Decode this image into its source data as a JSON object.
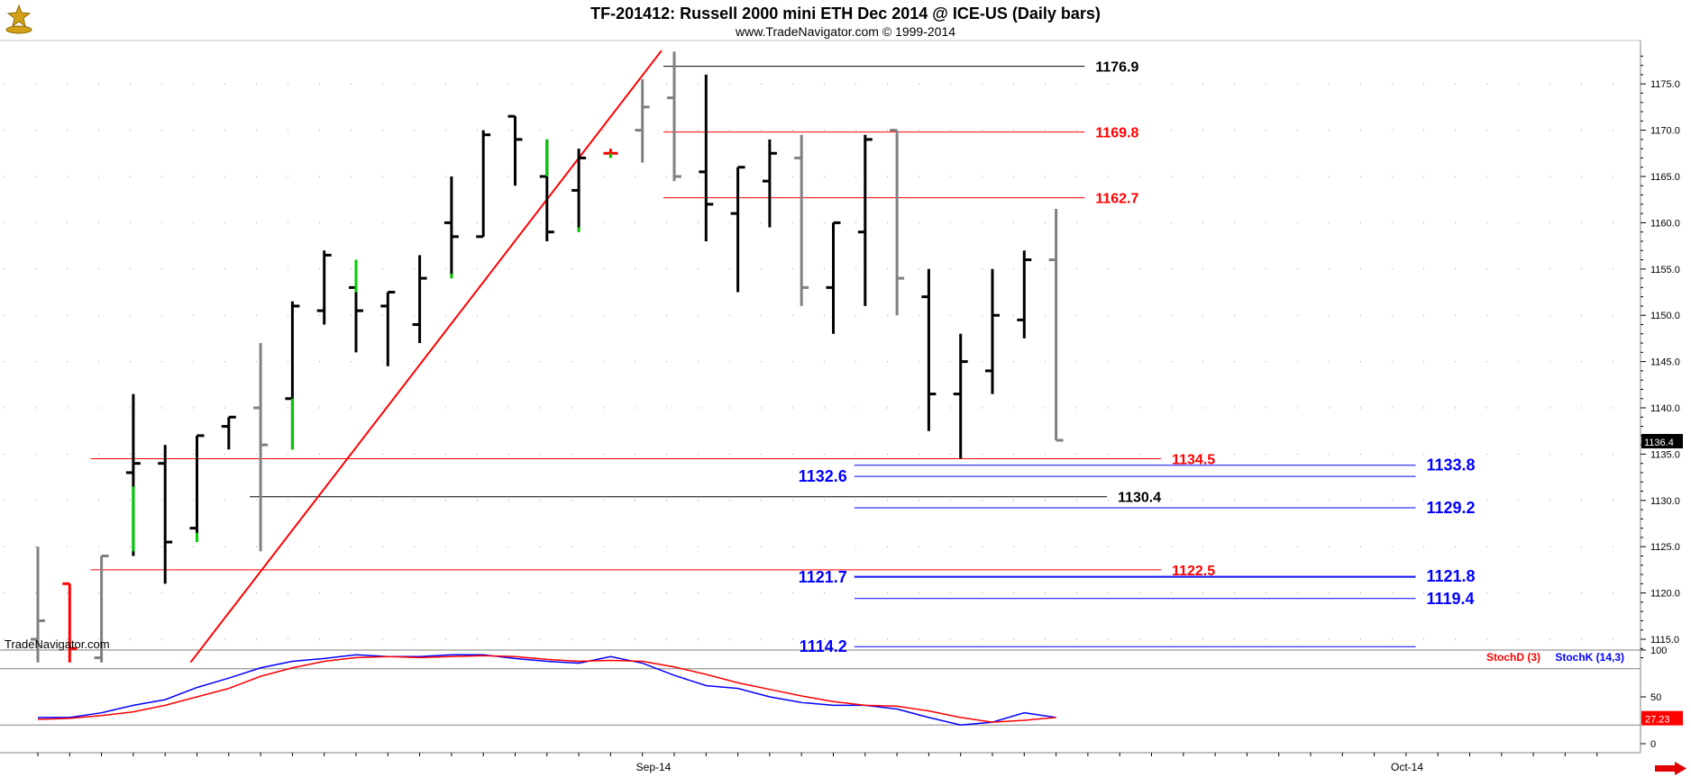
{
  "header": {
    "title": "TF-201412:  Russell 2000 mini ETH Dec 2014 @ ICE-US  (Daily bars)",
    "copyright": "www.TradeNavigator.com © 1999-2014",
    "watermark": "TradeNavigator.com"
  },
  "colors": {
    "background": "#ffffff",
    "up_bar": "#000000",
    "down_bar": "#808080",
    "green_bar": "#00cc00",
    "red_bar": "#ff0000",
    "red_level": "#ff0000",
    "blue_level": "#0000ff",
    "black_level": "#000000",
    "trendline": "#ff0000",
    "stoch_k": "#0000ff",
    "stoch_d": "#ff0000",
    "last_price_box": "#000000",
    "stoch_value_box": "#ff0000",
    "grid": "#999999"
  },
  "chart_data": [
    {
      "type": "ohlc",
      "title": "TF-201412:  Russell 2000 mini ETH Dec 2014 @ ICE-US  (Daily bars)",
      "x_tick_labels": [
        "Sep-14",
        "Oct-14"
      ],
      "y_ticks": [
        1115.0,
        1120.0,
        1125.0,
        1130.0,
        1135.0,
        1140.0,
        1145.0,
        1150.0,
        1155.0,
        1160.0,
        1165.0,
        1170.0,
        1175.0
      ],
      "ylim": [
        1112.4,
        1178.6
      ],
      "grid": true,
      "last_price": "1136.4",
      "bars": [
        {
          "o": 1115.0,
          "h": 1125.0,
          "l": 1112.5,
          "c": 1117.0,
          "color": "gray"
        },
        {
          "o": 1121.0,
          "h": 1121.0,
          "l": 1112.5,
          "c": 1114.0,
          "color": "red"
        },
        {
          "o": 1113.0,
          "h": 1124.0,
          "l": 1112.5,
          "c": 1124.0,
          "color": "gray"
        },
        {
          "o": 1133.0,
          "h": 1141.5,
          "l": 1124.0,
          "c": 1134.0,
          "color": "black"
        },
        {
          "o": 1134.0,
          "h": 1136.0,
          "l": 1121.0,
          "c": 1125.5,
          "color": "black"
        },
        {
          "o": 1127.0,
          "h": 1137.0,
          "l": 1125.5,
          "c": 1137.0,
          "color": "black"
        },
        {
          "o": 1138.0,
          "h": 1139.0,
          "l": 1135.5,
          "c": 1139.0,
          "color": "black"
        },
        {
          "o": 1140.0,
          "h": 1147.0,
          "l": 1124.5,
          "c": 1136.0,
          "color": "gray"
        },
        {
          "o": 1141.0,
          "h": 1151.5,
          "l": 1135.5,
          "c": 1151.0,
          "color": "black"
        },
        {
          "o": 1150.5,
          "h": 1157.0,
          "l": 1149.0,
          "c": 1156.5,
          "color": "black"
        },
        {
          "o": 1153.0,
          "h": 1156.0,
          "l": 1146.0,
          "c": 1150.5,
          "color": "black"
        },
        {
          "o": 1151.0,
          "h": 1152.5,
          "l": 1144.5,
          "c": 1152.5,
          "color": "black"
        },
        {
          "o": 1149.0,
          "h": 1156.5,
          "l": 1147.0,
          "c": 1154.0,
          "color": "black"
        },
        {
          "o": 1160.0,
          "h": 1165.0,
          "l": 1154.0,
          "c": 1158.5,
          "color": "black"
        },
        {
          "o": 1158.5,
          "h": 1170.0,
          "l": 1158.5,
          "c": 1169.5,
          "color": "black"
        },
        {
          "o": 1171.5,
          "h": 1171.5,
          "l": 1164.0,
          "c": 1169.0,
          "color": "black"
        },
        {
          "o": 1165.0,
          "h": 1169.0,
          "l": 1158.0,
          "c": 1159.0,
          "color": "black"
        },
        {
          "o": 1163.5,
          "h": 1168.0,
          "l": 1159.0,
          "c": 1167.0,
          "color": "black"
        },
        {
          "o": 1167.5,
          "h": 1168.0,
          "l": 1167.0,
          "c": 1167.5,
          "color": "red"
        },
        {
          "o": 1170.0,
          "h": 1175.5,
          "l": 1166.5,
          "c": 1172.5,
          "color": "gray"
        },
        {
          "o": 1173.5,
          "h": 1178.5,
          "l": 1164.5,
          "c": 1165.0,
          "color": "gray"
        },
        {
          "o": 1165.5,
          "h": 1176.0,
          "l": 1158.0,
          "c": 1162.0,
          "color": "black"
        },
        {
          "o": 1161.0,
          "h": 1166.0,
          "l": 1152.5,
          "c": 1166.0,
          "color": "black"
        },
        {
          "o": 1164.5,
          "h": 1169.0,
          "l": 1159.5,
          "c": 1167.5,
          "color": "black"
        },
        {
          "o": 1167.0,
          "h": 1169.5,
          "l": 1151.0,
          "c": 1153.0,
          "color": "gray"
        },
        {
          "o": 1153.0,
          "h": 1160.0,
          "l": 1148.0,
          "c": 1160.0,
          "color": "black"
        },
        {
          "o": 1159.0,
          "h": 1169.5,
          "l": 1151.0,
          "c": 1169.0,
          "color": "black"
        },
        {
          "o": 1170.0,
          "h": 1170.0,
          "l": 1150.0,
          "c": 1154.0,
          "color": "gray"
        },
        {
          "o": 1152.0,
          "h": 1155.0,
          "l": 1137.5,
          "c": 1141.5,
          "color": "black"
        },
        {
          "o": 1141.5,
          "h": 1148.0,
          "l": 1134.5,
          "c": 1145.0,
          "color": "black"
        },
        {
          "o": 1144.0,
          "h": 1155.0,
          "l": 1141.5,
          "c": 1150.0,
          "color": "black"
        },
        {
          "o": 1149.5,
          "h": 1157.0,
          "l": 1147.5,
          "c": 1156.0,
          "color": "black"
        },
        {
          "o": 1156.0,
          "h": 1161.5,
          "l": 1136.5,
          "c": 1136.5,
          "color": "gray"
        }
      ],
      "green_segments": [
        {
          "bar": 3,
          "from": 1124.5,
          "to": 1131.5
        },
        {
          "bar": 5,
          "from": 1125.5,
          "to": 1126.5
        },
        {
          "bar": 8,
          "from": 1135.5,
          "to": 1141.0
        },
        {
          "bar": 10,
          "from": 1152.5,
          "to": 1156.0
        },
        {
          "bar": 13,
          "from": 1154.0,
          "to": 1154.5
        },
        {
          "bar": 16,
          "from": 1165.0,
          "to": 1169.0
        },
        {
          "bar": 17,
          "from": 1159.0,
          "to": 1159.5
        },
        {
          "bar": 18,
          "from": 1167.0,
          "to": 1167.5
        }
      ],
      "trendline": {
        "from_bar": 4.8,
        "from_price": 1112.5,
        "to_bar": 19.6,
        "to_price": 1178.6
      },
      "levels": [
        {
          "price": 1176.9,
          "label": "1176.9",
          "color": "black",
          "from_bar": 20,
          "to_bar": 32.9,
          "label_side": "right"
        },
        {
          "price": 1169.8,
          "label": "1169.8",
          "color": "red",
          "from_bar": 20,
          "to_bar": 32.9,
          "label_side": "right"
        },
        {
          "price": 1162.7,
          "label": "1162.7",
          "color": "red",
          "from_bar": 20,
          "to_bar": 32.9,
          "label_side": "right"
        },
        {
          "price": 1134.5,
          "label": "1134.5",
          "color": "red",
          "from_bar": 2,
          "to_bar": 35.3,
          "label_side": "right"
        },
        {
          "price": 1133.8,
          "label": "1133.8",
          "color": "blue",
          "from_bar": 26,
          "to_bar": 43.3,
          "label_side": "right"
        },
        {
          "price": 1132.6,
          "label": "1132.6",
          "color": "blue",
          "from_bar": 26,
          "to_bar": 43.3,
          "label_side": "left"
        },
        {
          "price": 1130.4,
          "label": "1130.4",
          "color": "black",
          "from_bar": 7,
          "to_bar": 33.6,
          "label_side": "right"
        },
        {
          "price": 1129.2,
          "label": "1129.2",
          "color": "blue",
          "from_bar": 26,
          "to_bar": 43.3,
          "label_side": "right"
        },
        {
          "price": 1122.5,
          "label": "1122.5",
          "color": "red",
          "from_bar": 2,
          "to_bar": 35.3,
          "label_side": "right"
        },
        {
          "price": 1121.8,
          "label": "1121.8",
          "color": "blue",
          "from_bar": 26,
          "to_bar": 43.3,
          "label_side": "right"
        },
        {
          "price": 1121.7,
          "label": "1121.7",
          "color": "blue",
          "from_bar": 26,
          "to_bar": 43.3,
          "label_side": "left"
        },
        {
          "price": 1119.4,
          "label": "1119.4",
          "color": "blue",
          "from_bar": 26,
          "to_bar": 43.3,
          "label_side": "right"
        },
        {
          "price": 1114.2,
          "label": "1114.2",
          "color": "blue",
          "from_bar": 26,
          "to_bar": 43.3,
          "label_side": "left"
        }
      ]
    },
    {
      "type": "line",
      "title": "",
      "legend": [
        "StochD (3)",
        "StochK (14,3)"
      ],
      "y_ticks": [
        0,
        50,
        100
      ],
      "ylim": [
        0,
        100
      ],
      "reference_lines": [
        80,
        20
      ],
      "last_value": "27.23",
      "series": [
        {
          "name": "StochK (14,3)",
          "color": "blue",
          "values": [
            28,
            28,
            33,
            41,
            47,
            60,
            70,
            81,
            88,
            91,
            95,
            93,
            93,
            95,
            95,
            91,
            88,
            86,
            93,
            86,
            73,
            62,
            59,
            50,
            44,
            41,
            41,
            37,
            28,
            20,
            23,
            33,
            28
          ]
        },
        {
          "name": "StochD (3)",
          "color": "red",
          "values": [
            26,
            27,
            30,
            34,
            41,
            50,
            59,
            72,
            81,
            88,
            92,
            93,
            92,
            93,
            94,
            93,
            90,
            88,
            89,
            88,
            82,
            74,
            65,
            58,
            51,
            45,
            41,
            40,
            35,
            28,
            23,
            25,
            28
          ]
        }
      ]
    }
  ]
}
